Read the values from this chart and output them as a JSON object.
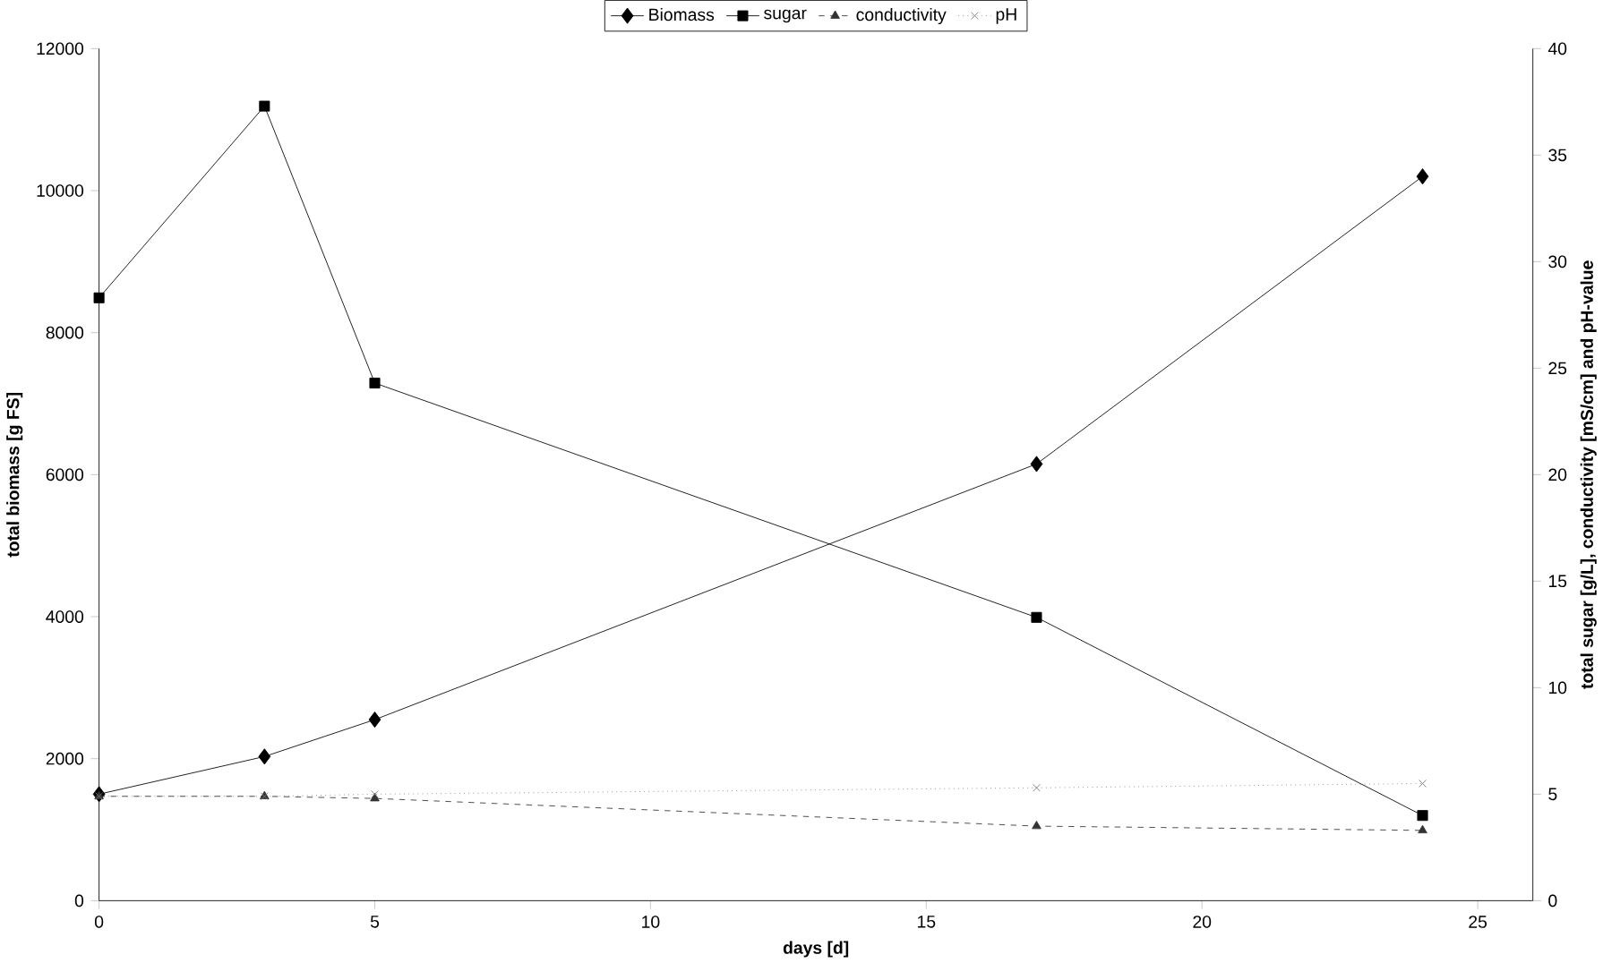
{
  "chart_data": {
    "type": "line",
    "xlabel": "days [d]",
    "ylabel": "total biomass [g FS]",
    "y2label": "total sugar [g/L], conductivity [mS/cm] and pH-value",
    "x": [
      0,
      3,
      5,
      17,
      24
    ],
    "xlim": [
      0,
      26
    ],
    "xticks": [
      0,
      5,
      10,
      15,
      20,
      25
    ],
    "ylim": [
      0,
      12000
    ],
    "yticks": [
      0,
      2000,
      4000,
      6000,
      8000,
      10000,
      12000
    ],
    "y2lim": [
      0,
      40
    ],
    "y2ticks": [
      0,
      5,
      10,
      15,
      20,
      25,
      30,
      35,
      40
    ],
    "legend": "top",
    "grid": false,
    "series": [
      {
        "name": "Biomass",
        "color": "#000000",
        "marker": "diamond",
        "line_style": "solid",
        "values": [
          1500,
          2030,
          2550,
          6150,
          10200
        ]
      },
      {
        "name": "sugar",
        "color": "#000000",
        "marker": "square",
        "line_style": "solid",
        "axis": "y2",
        "values": [
          28.3,
          37.3,
          24.3,
          13.3,
          4.0
        ]
      },
      {
        "name": "conductivity",
        "color": "#333333",
        "marker": "triangle",
        "line_style": "dashed",
        "axis": "y2",
        "values": [
          4.9,
          4.9,
          4.8,
          3.5,
          3.3
        ]
      },
      {
        "name": "pH",
        "color": "#777777",
        "marker": "cross",
        "line_style": "dotted",
        "axis": "y2",
        "values": [
          4.9,
          4.9,
          5.0,
          5.3,
          5.5
        ]
      }
    ]
  }
}
